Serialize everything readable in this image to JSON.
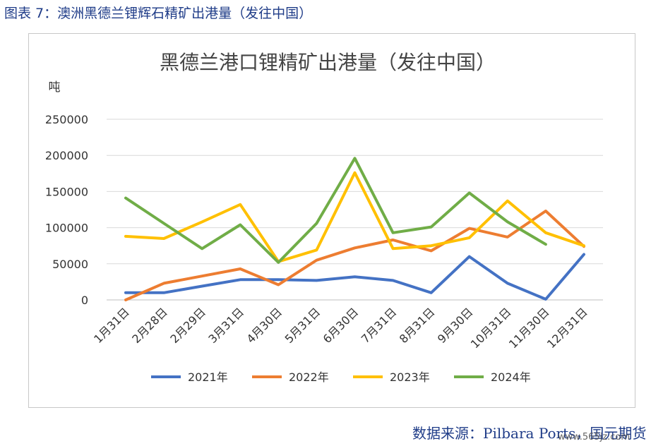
{
  "figure": {
    "caption": "图表 7：澳洲黑德兰锂辉石精矿出港量（发往中国）",
    "source": "数据来源：Pilbara Ports，国元期货",
    "watermark": "www.565jz.com"
  },
  "chart_data": {
    "type": "line",
    "title": "黑德兰港口锂精矿出港量（发往中国）",
    "ylabel": "吨",
    "xlabel": "",
    "categories": [
      "1月31日",
      "2月28日",
      "2月29日",
      "3月31日",
      "4月30日",
      "5月31日",
      "6月30日",
      "7月31日",
      "8月31日",
      "9月30日",
      "10月31日",
      "11月30日",
      "12月31日"
    ],
    "yticks": [
      "0",
      "50000",
      "100000",
      "150000",
      "200000",
      "250000"
    ],
    "ylim": [
      0,
      250000
    ],
    "grid": true,
    "legend": "bottom",
    "series": [
      {
        "name": "2021年",
        "color": "#4472c4",
        "values": [
          10000,
          10000,
          19000,
          28000,
          28000,
          27000,
          32000,
          27000,
          10000,
          60000,
          23000,
          1000,
          63000
        ]
      },
      {
        "name": "2022年",
        "color": "#ed7d31",
        "values": [
          0,
          23000,
          33000,
          43000,
          21000,
          55000,
          72000,
          83000,
          68000,
          99000,
          87000,
          123000,
          74000
        ]
      },
      {
        "name": "2023年",
        "color": "#ffc000",
        "values": [
          88000,
          85000,
          108000,
          132000,
          53000,
          69000,
          176000,
          71000,
          75000,
          86000,
          137000,
          93000,
          75000
        ]
      },
      {
        "name": "2024年",
        "color": "#70ad47",
        "values": [
          141000,
          106000,
          71000,
          104000,
          52000,
          106000,
          196000,
          93000,
          101000,
          148000,
          108000,
          77000,
          null
        ]
      }
    ]
  }
}
